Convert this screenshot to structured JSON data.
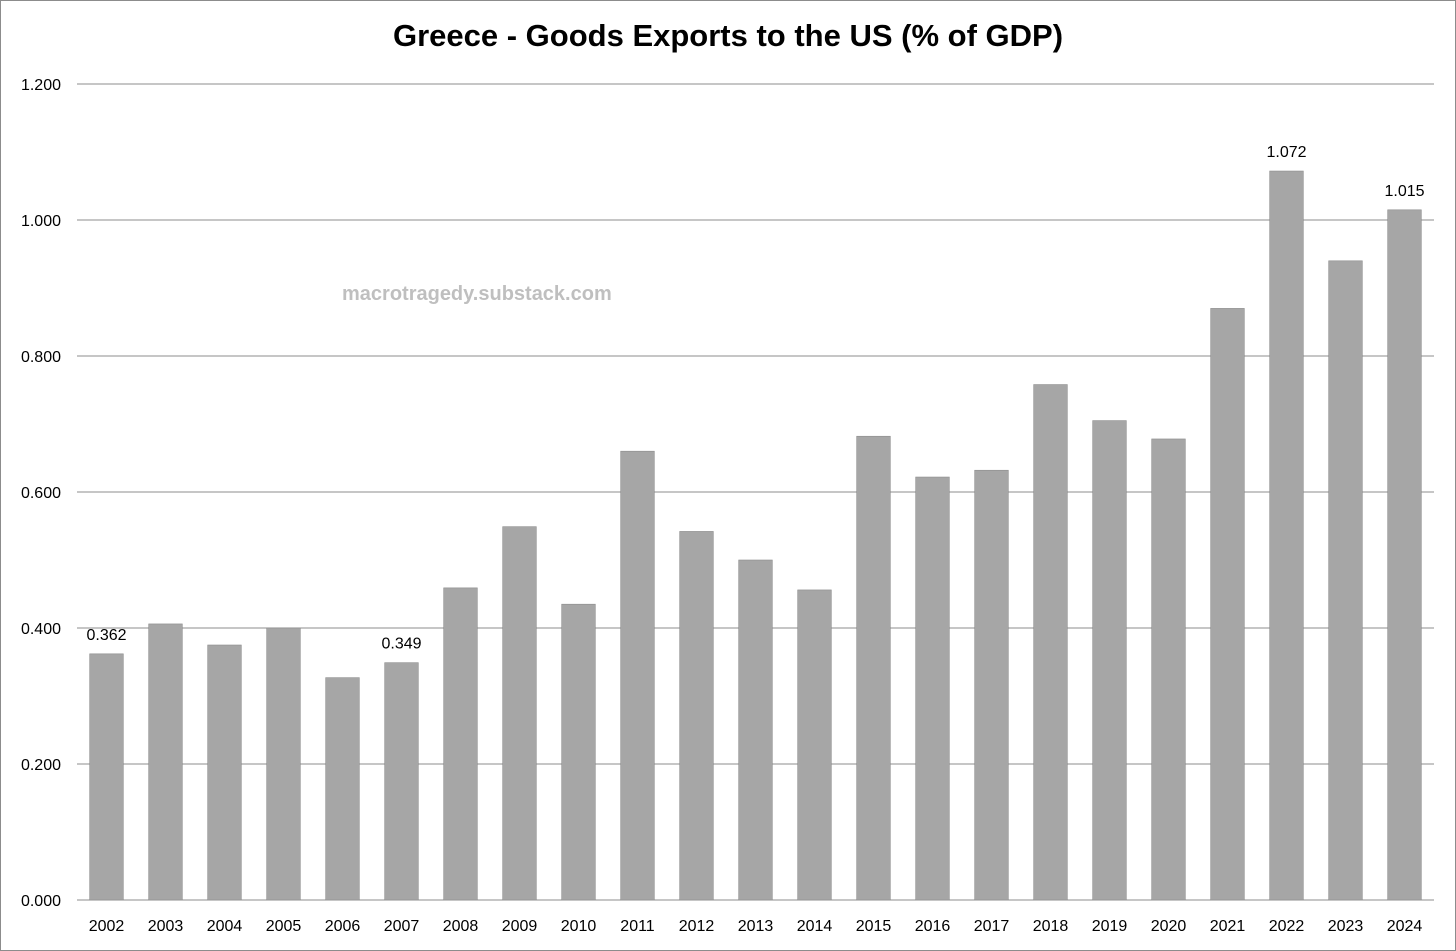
{
  "chart_data": {
    "type": "bar",
    "title": "Greece - Goods Exports to the US (% of GDP)",
    "watermark": "macrotragedy.substack.com",
    "xlabel": "",
    "ylabel": "",
    "ylim": [
      0,
      1.2
    ],
    "y_ticks": [
      "0.000",
      "0.200",
      "0.400",
      "0.600",
      "0.800",
      "1.000",
      "1.200"
    ],
    "grid": true,
    "legend": "none",
    "bar_color": "#a6a6a6",
    "grid_color": "#8c8c8c",
    "categories": [
      "2002",
      "2003",
      "2004",
      "2005",
      "2006",
      "2007",
      "2008",
      "2009",
      "2010",
      "2011",
      "2012",
      "2013",
      "2014",
      "2015",
      "2016",
      "2017",
      "2018",
      "2019",
      "2020",
      "2021",
      "2022",
      "2023",
      "2024"
    ],
    "values": [
      0.362,
      0.406,
      0.375,
      0.4,
      0.327,
      0.349,
      0.459,
      0.549,
      0.435,
      0.66,
      0.542,
      0.5,
      0.456,
      0.682,
      0.622,
      0.632,
      0.758,
      0.705,
      0.678,
      0.87,
      1.072,
      0.94,
      1.015
    ],
    "data_labels": [
      {
        "category": "2002",
        "text": "0.362"
      },
      {
        "category": "2007",
        "text": "0.349"
      },
      {
        "category": "2022",
        "text": "1.072"
      },
      {
        "category": "2024",
        "text": "1.015"
      }
    ]
  }
}
